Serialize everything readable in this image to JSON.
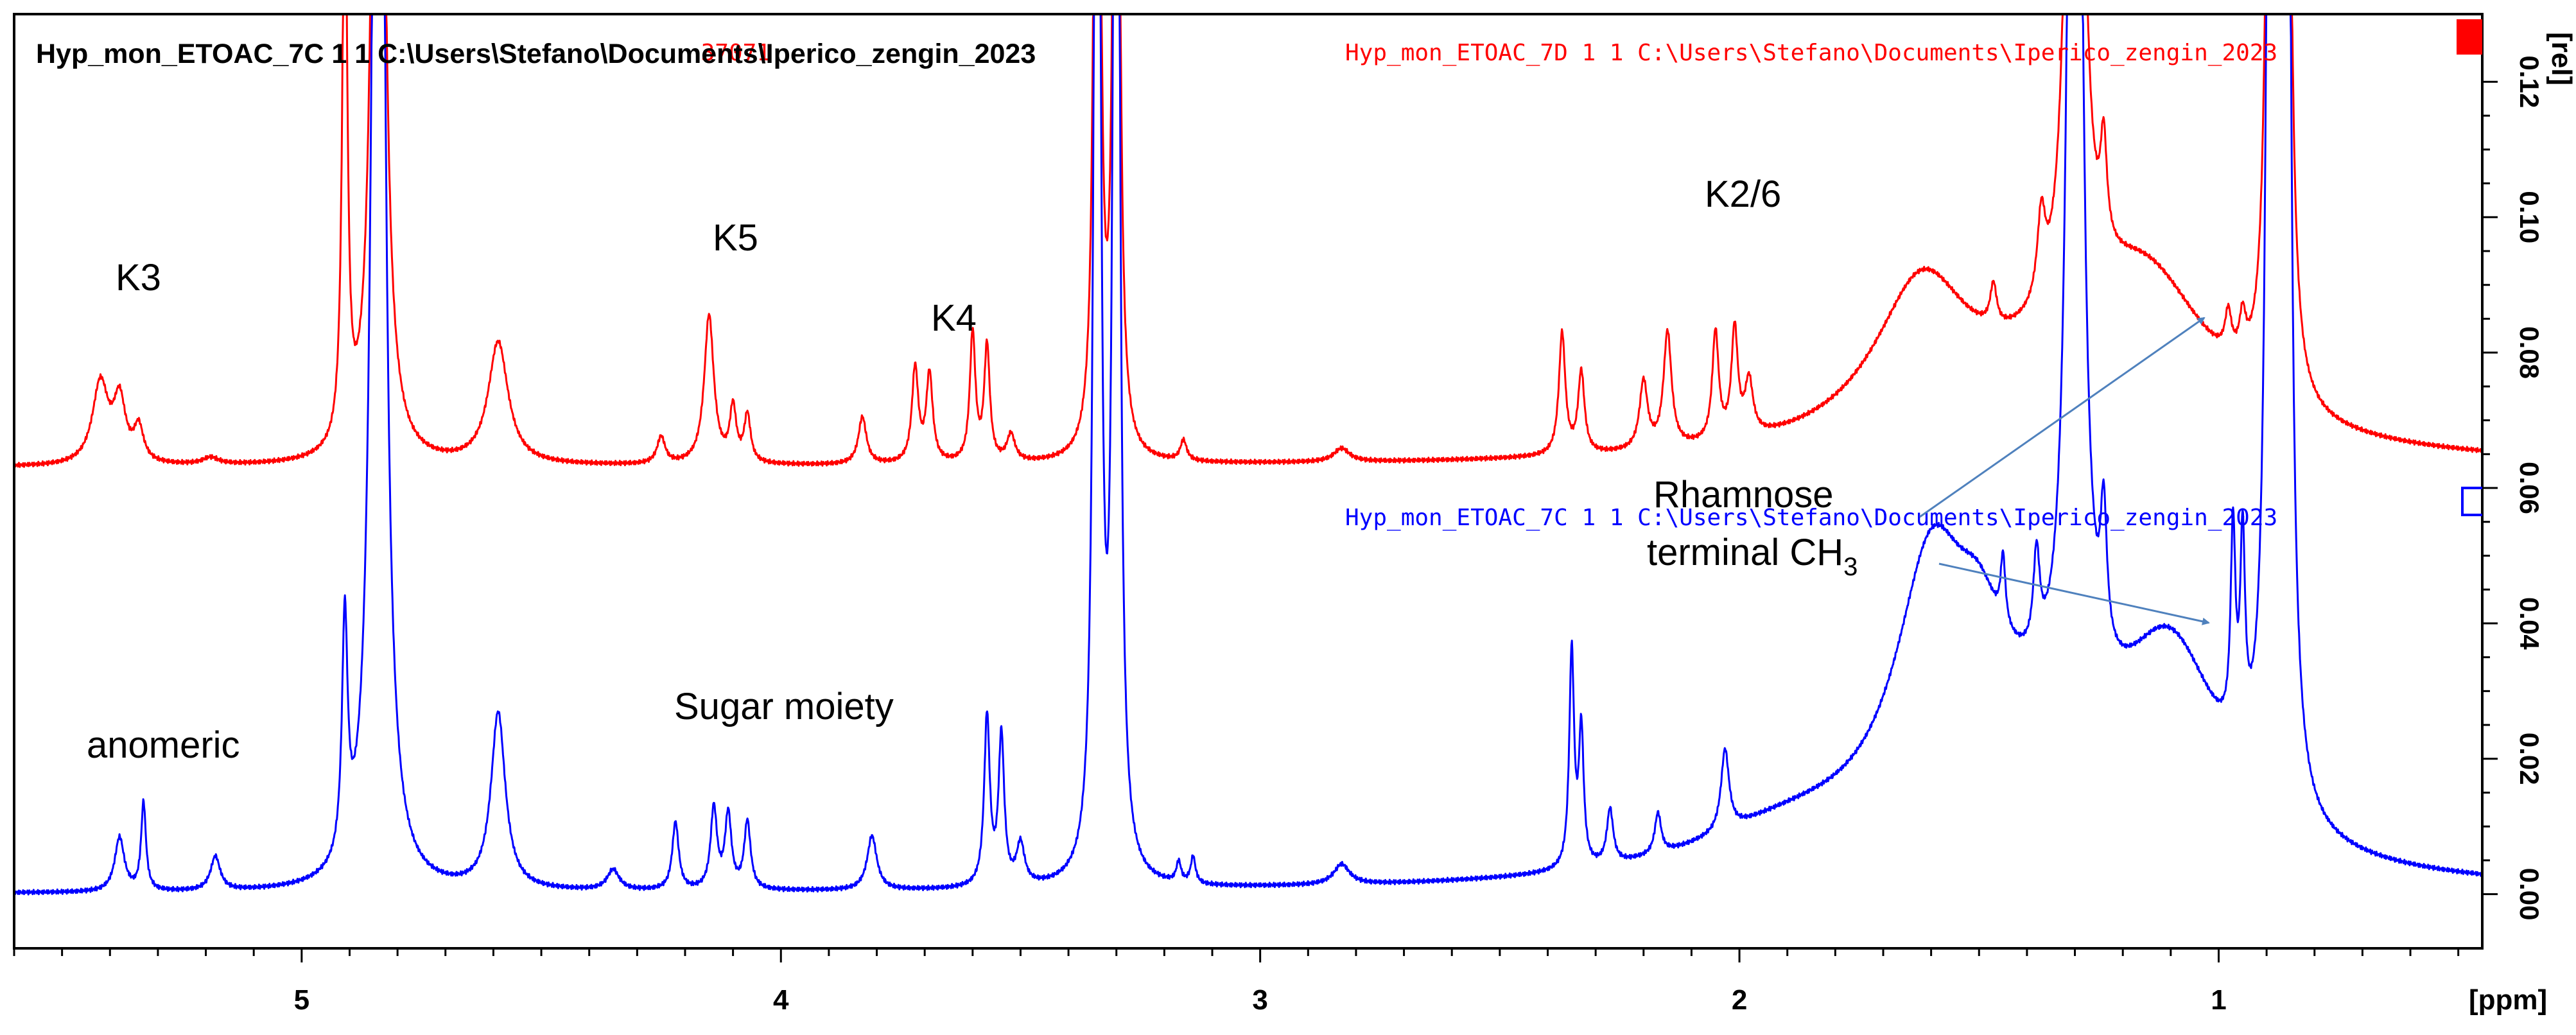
{
  "header": {
    "black_title": "Hyp_mon_ETOAC_7C  1  1  C:\\Users\\Stefano\\Documents\\Iperico_zengin_2023",
    "red_fragment": "37071",
    "red_title": "Hyp_mon_ETOAC_7D  1  1  C:\\Users\\Stefano\\Documents\\Iperico_zengin_2023",
    "blue_title": "Hyp_mon_ETOAC_7C  1  1  C:\\Users\\Stefano\\Documents\\Iperico_zengin_2023"
  },
  "annotations": {
    "k3": "K3",
    "k5": "K5",
    "k4": "K4",
    "k26": "K2/6",
    "rhamnose": "Rhamnose",
    "terminal": "terminal CH",
    "terminal_sub": "3",
    "anomeric": "anomeric",
    "sugar": "Sugar moiety"
  },
  "colors": {
    "red": "#ff0000",
    "blue": "#0000ff",
    "arrow": "#4f81bd",
    "axis": "#000000"
  },
  "chart_data": {
    "type": "line",
    "title": "",
    "xlabel": "[ppm]",
    "ylabel": "[rel]",
    "xlim": [
      5.6,
      0.45
    ],
    "ylim": [
      -0.008,
      0.13
    ],
    "x_reversed": true,
    "x_ticks": [
      "5",
      "4",
      "3",
      "2",
      "1"
    ],
    "x_tick_values": [
      5,
      4,
      3,
      2,
      1
    ],
    "y_ticks": [
      "0.00",
      "0.02",
      "0.04",
      "0.06",
      "0.08",
      "0.10",
      "0.12"
    ],
    "y_tick_values": [
      0.0,
      0.02,
      0.04,
      0.06,
      0.08,
      0.1,
      0.12
    ],
    "legend": "top-right",
    "series": [
      {
        "name": "Hyp_mon_ETOAC_7D",
        "color": "#ff0000",
        "baseline": 0.063,
        "broad": [
          {
            "x": 1.62,
            "h": 0.022,
            "w": 0.12
          },
          {
            "x": 1.15,
            "h": 0.02,
            "w": 0.16
          },
          {
            "x": 1.3,
            "h": 0.01,
            "w": 0.3
          }
        ],
        "peaks": [
          {
            "x": 5.42,
            "h": 0.012,
            "w": 0.02
          },
          {
            "x": 5.38,
            "h": 0.009,
            "w": 0.015
          },
          {
            "x": 5.34,
            "h": 0.005,
            "w": 0.012
          },
          {
            "x": 5.19,
            "h": 0.001,
            "w": 0.02
          },
          {
            "x": 4.91,
            "h": 0.09,
            "w": 0.006
          },
          {
            "x": 4.84,
            "h": 0.2,
            "w": 0.012
          },
          {
            "x": 4.59,
            "h": 0.018,
            "w": 0.025
          },
          {
            "x": 4.25,
            "h": 0.004,
            "w": 0.01
          },
          {
            "x": 4.15,
            "h": 0.022,
            "w": 0.012
          },
          {
            "x": 4.1,
            "h": 0.008,
            "w": 0.008
          },
          {
            "x": 4.07,
            "h": 0.007,
            "w": 0.008
          },
          {
            "x": 3.83,
            "h": 0.007,
            "w": 0.01
          },
          {
            "x": 3.72,
            "h": 0.014,
            "w": 0.008
          },
          {
            "x": 3.69,
            "h": 0.013,
            "w": 0.008
          },
          {
            "x": 3.6,
            "h": 0.019,
            "w": 0.007
          },
          {
            "x": 3.57,
            "h": 0.017,
            "w": 0.007
          },
          {
            "x": 3.52,
            "h": 0.004,
            "w": 0.01
          },
          {
            "x": 3.34,
            "h": 0.2,
            "w": 0.006
          },
          {
            "x": 3.3,
            "h": 0.2,
            "w": 0.006
          },
          {
            "x": 3.16,
            "h": 0.003,
            "w": 0.008
          },
          {
            "x": 2.83,
            "h": 0.002,
            "w": 0.02
          },
          {
            "x": 2.37,
            "h": 0.018,
            "w": 0.008
          },
          {
            "x": 2.33,
            "h": 0.012,
            "w": 0.008
          },
          {
            "x": 2.2,
            "h": 0.01,
            "w": 0.01
          },
          {
            "x": 2.15,
            "h": 0.017,
            "w": 0.01
          },
          {
            "x": 2.05,
            "h": 0.016,
            "w": 0.008
          },
          {
            "x": 2.01,
            "h": 0.016,
            "w": 0.008
          },
          {
            "x": 1.98,
            "h": 0.008,
            "w": 0.01
          },
          {
            "x": 1.47,
            "h": 0.006,
            "w": 0.008
          },
          {
            "x": 1.37,
            "h": 0.012,
            "w": 0.01
          },
          {
            "x": 1.3,
            "h": 0.25,
            "w": 0.012
          },
          {
            "x": 1.24,
            "h": 0.015,
            "w": 0.008
          },
          {
            "x": 0.98,
            "h": 0.006,
            "w": 0.008
          },
          {
            "x": 0.95,
            "h": 0.006,
            "w": 0.008
          },
          {
            "x": 0.89,
            "h": 0.2,
            "w": 0.008
          },
          {
            "x": 0.86,
            "h": 0.2,
            "w": 0.008
          }
        ]
      },
      {
        "name": "Hyp_mon_ETOAC_7C",
        "color": "#0000ff",
        "baseline": 0.0,
        "broad": [
          {
            "x": 1.6,
            "h": 0.035,
            "w": 0.09
          },
          {
            "x": 1.5,
            "h": 0.012,
            "w": 0.06
          },
          {
            "x": 1.1,
            "h": 0.028,
            "w": 0.13
          },
          {
            "x": 1.4,
            "h": 0.018,
            "w": 0.25
          },
          {
            "x": 1.9,
            "h": 0.006,
            "w": 0.25
          }
        ],
        "peaks": [
          {
            "x": 5.38,
            "h": 0.008,
            "w": 0.012
          },
          {
            "x": 5.33,
            "h": 0.013,
            "w": 0.006
          },
          {
            "x": 5.18,
            "h": 0.005,
            "w": 0.012
          },
          {
            "x": 4.91,
            "h": 0.035,
            "w": 0.007
          },
          {
            "x": 4.84,
            "h": 0.3,
            "w": 0.012
          },
          {
            "x": 4.59,
            "h": 0.026,
            "w": 0.018
          },
          {
            "x": 4.35,
            "h": 0.003,
            "w": 0.015
          },
          {
            "x": 4.22,
            "h": 0.01,
            "w": 0.008
          },
          {
            "x": 4.14,
            "h": 0.012,
            "w": 0.008
          },
          {
            "x": 4.11,
            "h": 0.011,
            "w": 0.008
          },
          {
            "x": 4.07,
            "h": 0.01,
            "w": 0.008
          },
          {
            "x": 3.81,
            "h": 0.008,
            "w": 0.012
          },
          {
            "x": 3.57,
            "h": 0.025,
            "w": 0.007
          },
          {
            "x": 3.54,
            "h": 0.022,
            "w": 0.007
          },
          {
            "x": 3.5,
            "h": 0.006,
            "w": 0.01
          },
          {
            "x": 3.34,
            "h": 0.3,
            "w": 0.006
          },
          {
            "x": 3.3,
            "h": 0.3,
            "w": 0.006
          },
          {
            "x": 3.17,
            "h": 0.003,
            "w": 0.006
          },
          {
            "x": 3.14,
            "h": 0.004,
            "w": 0.006
          },
          {
            "x": 2.83,
            "h": 0.003,
            "w": 0.02
          },
          {
            "x": 2.35,
            "h": 0.032,
            "w": 0.006
          },
          {
            "x": 2.33,
            "h": 0.02,
            "w": 0.006
          },
          {
            "x": 2.27,
            "h": 0.008,
            "w": 0.008
          },
          {
            "x": 2.17,
            "h": 0.006,
            "w": 0.008
          },
          {
            "x": 2.03,
            "h": 0.012,
            "w": 0.01
          },
          {
            "x": 1.45,
            "h": 0.01,
            "w": 0.006
          },
          {
            "x": 1.38,
            "h": 0.014,
            "w": 0.008
          },
          {
            "x": 1.3,
            "h": 0.3,
            "w": 0.012
          },
          {
            "x": 1.24,
            "h": 0.02,
            "w": 0.008
          },
          {
            "x": 0.97,
            "h": 0.03,
            "w": 0.006
          },
          {
            "x": 0.95,
            "h": 0.029,
            "w": 0.006
          },
          {
            "x": 0.89,
            "h": 0.3,
            "w": 0.008
          },
          {
            "x": 0.86,
            "h": 0.3,
            "w": 0.008
          }
        ]
      }
    ]
  }
}
